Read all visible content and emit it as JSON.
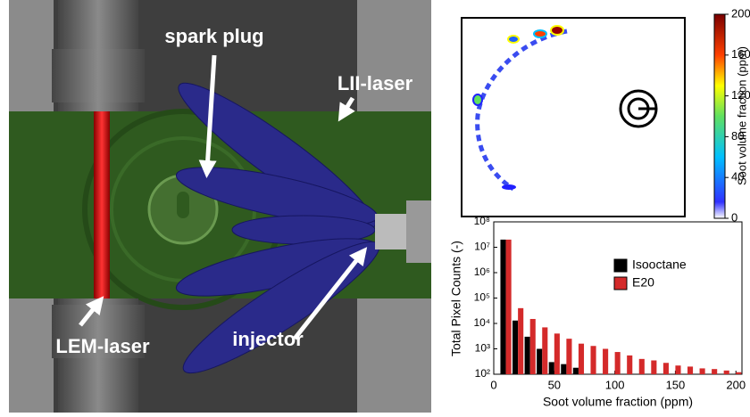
{
  "illustration": {
    "labels": [
      "spark plug",
      "LII-laser",
      "LEM-laser",
      "injector"
    ]
  },
  "colorbar": {
    "label": "Soot volume fraction (ppm)",
    "lim": [
      0,
      200
    ],
    "ticks": [
      0,
      40,
      80,
      120,
      160,
      200
    ]
  },
  "chart_data": {
    "type": "bar",
    "xlabel": "Soot volume fraction (ppm)",
    "ylabel": "Total Pixel Counts (-)",
    "x": [
      10,
      20,
      30,
      40,
      50,
      60,
      70,
      80,
      90,
      100,
      110,
      120,
      130,
      140,
      150,
      160,
      170,
      180,
      190,
      200
    ],
    "series": [
      {
        "name": "Isooctane",
        "color": "#000000",
        "values": [
          20000000,
          13000,
          3000,
          1000,
          300,
          250,
          180,
          null,
          null,
          null,
          null,
          null,
          null,
          null,
          null,
          null,
          null,
          null,
          null,
          null
        ]
      },
      {
        "name": "E20",
        "color": "#d42a2a",
        "values": [
          20000000,
          40000,
          15000,
          7000,
          4000,
          2500,
          1600,
          1300,
          1000,
          750,
          550,
          400,
          350,
          280,
          220,
          200,
          170,
          160,
          140,
          120
        ]
      }
    ],
    "xlim": [
      0,
      205
    ],
    "xticks": [
      0,
      50,
      100,
      150,
      200
    ],
    "ylim": [
      100,
      100000000
    ],
    "log_y": true,
    "yticks": [
      {
        "value": 100,
        "label": "10²"
      },
      {
        "value": 1000,
        "label": "10³"
      },
      {
        "value": 10000,
        "label": "10⁴"
      },
      {
        "value": 100000,
        "label": "10⁵"
      },
      {
        "value": 1000000,
        "label": "10⁶"
      },
      {
        "value": 10000000,
        "label": "10⁷"
      },
      {
        "value": 100000000,
        "label": "10⁸"
      }
    ],
    "legend": "upper right"
  }
}
